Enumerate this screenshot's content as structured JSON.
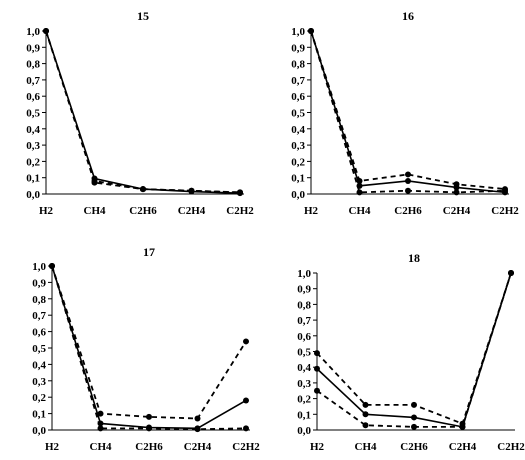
{
  "colors": {
    "line": "#000000",
    "background": "#ffffff"
  },
  "chart_data": [
    {
      "type": "line",
      "title": "15",
      "categories": [
        "H2",
        "CH4",
        "C2H6",
        "C2H4",
        "C2H2"
      ],
      "ylim": [
        0,
        1
      ],
      "yticks": [
        "0,0",
        "0,1",
        "0,2",
        "0,3",
        "0,4",
        "0,5",
        "0,6",
        "0,7",
        "0,8",
        "0,9",
        "1,0"
      ],
      "series": [
        {
          "style": "dashed",
          "values": [
            1.0,
            0.08,
            0.03,
            0.02,
            0.01
          ]
        },
        {
          "style": "dashed",
          "values": [
            1.0,
            0.07,
            0.03,
            0.02,
            0.01
          ]
        },
        {
          "style": "solid",
          "values": [
            1.0,
            0.095,
            0.03,
            0.015,
            0.005
          ]
        }
      ],
      "grid": false
    },
    {
      "type": "line",
      "title": "16",
      "categories": [
        "H2",
        "CH4",
        "C2H6",
        "C2H4",
        "C2H2"
      ],
      "ylim": [
        0,
        1
      ],
      "yticks": [
        "0,0",
        "0,1",
        "0,2",
        "0,3",
        "0,4",
        "0,5",
        "0,6",
        "0,7",
        "0,8",
        "0,9",
        "1,0"
      ],
      "series": [
        {
          "style": "dashed",
          "values": [
            1.0,
            0.08,
            0.12,
            0.06,
            0.03
          ]
        },
        {
          "style": "dashed",
          "values": [
            1.0,
            0.01,
            0.02,
            0.01,
            0.02
          ]
        },
        {
          "style": "solid",
          "values": [
            1.0,
            0.05,
            0.08,
            0.04,
            0.01
          ]
        }
      ],
      "grid": false
    },
    {
      "type": "line",
      "title": "17",
      "categories": [
        "H2",
        "CH4",
        "C2H6",
        "C2H4",
        "C2H2"
      ],
      "ylim": [
        0,
        1
      ],
      "yticks": [
        "0,0",
        "0,1",
        "0,2",
        "0,3",
        "0,4",
        "0,5",
        "0,6",
        "0,7",
        "0,8",
        "0,9",
        "1,0"
      ],
      "series": [
        {
          "style": "dashed",
          "values": [
            1.0,
            0.1,
            0.08,
            0.07,
            0.54
          ]
        },
        {
          "style": "dashed",
          "values": [
            1.0,
            0.01,
            0.01,
            0.005,
            0.01
          ]
        },
        {
          "style": "solid",
          "values": [
            1.0,
            0.04,
            0.015,
            0.01,
            0.18
          ]
        }
      ],
      "grid": false
    },
    {
      "type": "line",
      "title": "18",
      "categories": [
        "H2",
        "CH4",
        "C2H6",
        "C2H4",
        "C2H2"
      ],
      "ylim": [
        0,
        1
      ],
      "yticks": [
        "0,0",
        "0,1",
        "0,2",
        "0,3",
        "0,4",
        "0,5",
        "0,6",
        "0,7",
        "0,8",
        "0,9",
        "1,0"
      ],
      "series": [
        {
          "style": "dashed",
          "values": [
            0.49,
            0.16,
            0.16,
            0.04,
            1.0
          ]
        },
        {
          "style": "dashed",
          "values": [
            0.25,
            0.03,
            0.02,
            0.02,
            1.0
          ]
        },
        {
          "style": "solid",
          "values": [
            0.39,
            0.1,
            0.08,
            0.02,
            1.0
          ]
        }
      ],
      "grid": false
    }
  ]
}
